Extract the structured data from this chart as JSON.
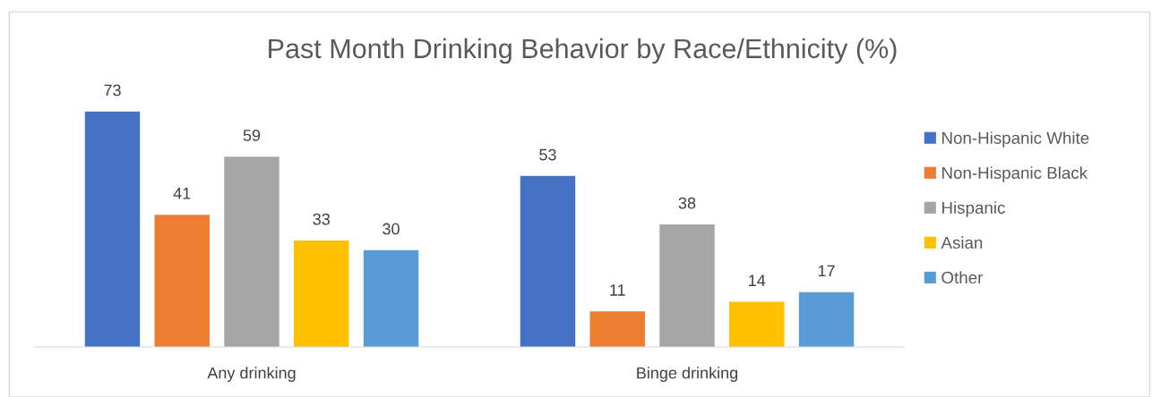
{
  "chart_data": {
    "type": "bar",
    "title": "Past Month Drinking Behavior by Race/Ethnicity (%)",
    "categories": [
      "Any drinking",
      "Binge drinking"
    ],
    "series": [
      {
        "name": "Non-Hispanic White",
        "color": "#4472c4",
        "values": [
          73,
          53
        ]
      },
      {
        "name": "Non-Hispanic Black",
        "color": "#ed7d31",
        "values": [
          41,
          11
        ]
      },
      {
        "name": "Hispanic",
        "color": "#a5a5a5",
        "values": [
          59,
          38
        ]
      },
      {
        "name": "Asian",
        "color": "#ffc000",
        "values": [
          33,
          14
        ]
      },
      {
        "name": "Other",
        "color": "#5b9bd5",
        "values": [
          30,
          17
        ]
      }
    ],
    "data_labels": true,
    "legend": "right"
  }
}
